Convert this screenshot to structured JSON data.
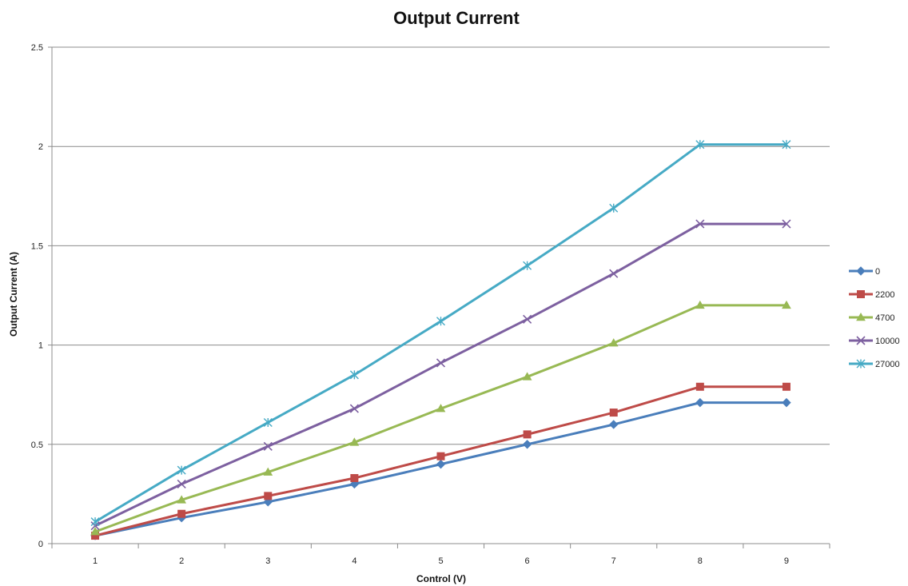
{
  "chart_data": {
    "type": "line",
    "title": "Output Current",
    "xlabel": "Control (V)",
    "ylabel": "Output Current (A)",
    "x": [
      1,
      2,
      3,
      4,
      5,
      6,
      7,
      8,
      9
    ],
    "xticks": [
      "1",
      "2",
      "3",
      "4",
      "5",
      "6",
      "7",
      "8",
      "9"
    ],
    "ylim": [
      0,
      2.5
    ],
    "yticks": [
      "0",
      "0.5",
      "1",
      "1.5",
      "2",
      "2.5"
    ],
    "ytick_values": [
      0,
      0.5,
      1,
      1.5,
      2,
      2.5
    ],
    "grid": "horizontal",
    "legend_position": "right",
    "series": [
      {
        "name": "0",
        "marker": "diamond",
        "color": "#4a7ebb",
        "values": [
          0.04,
          0.13,
          0.21,
          0.3,
          0.4,
          0.5,
          0.6,
          0.71,
          0.71
        ]
      },
      {
        "name": "2200",
        "marker": "square",
        "color": "#be4b48",
        "values": [
          0.04,
          0.15,
          0.24,
          0.33,
          0.44,
          0.55,
          0.66,
          0.79,
          0.79
        ]
      },
      {
        "name": "4700",
        "marker": "triangle",
        "color": "#98b954",
        "values": [
          0.06,
          0.22,
          0.36,
          0.51,
          0.68,
          0.84,
          1.01,
          1.2,
          1.2
        ]
      },
      {
        "name": "10000",
        "marker": "x",
        "color": "#7d60a0",
        "values": [
          0.09,
          0.3,
          0.49,
          0.68,
          0.91,
          1.13,
          1.36,
          1.61,
          1.61
        ]
      },
      {
        "name": "27000",
        "marker": "star",
        "color": "#46aac5",
        "values": [
          0.11,
          0.37,
          0.61,
          0.85,
          1.12,
          1.4,
          1.69,
          2.01,
          2.01
        ]
      }
    ]
  }
}
